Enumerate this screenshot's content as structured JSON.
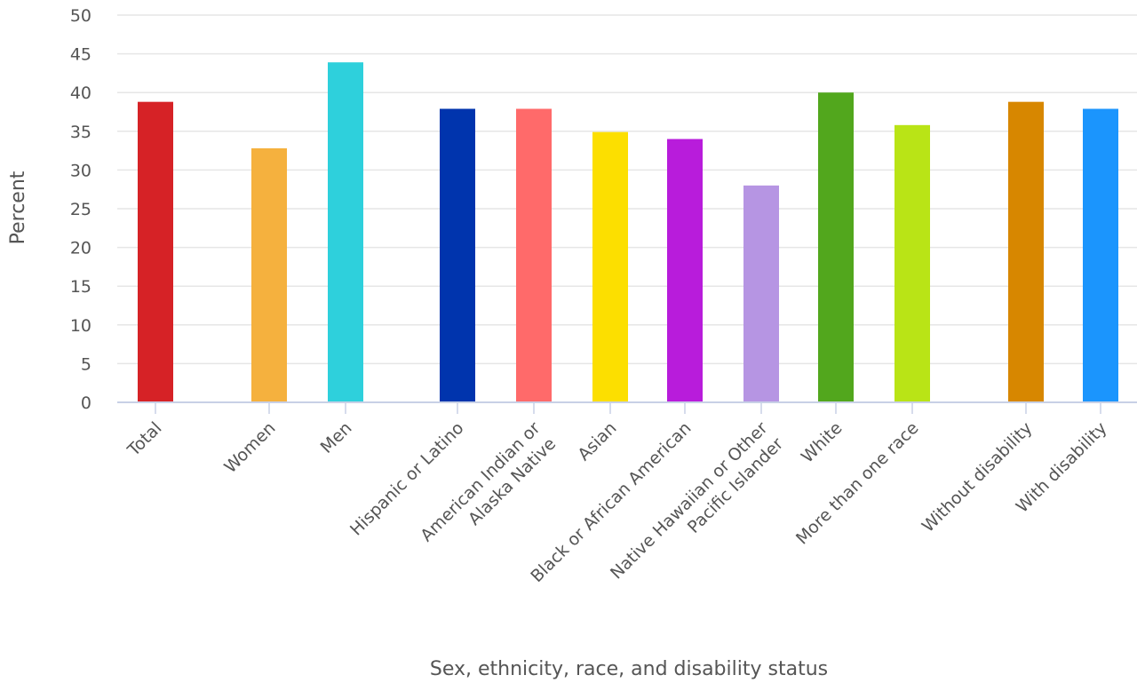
{
  "chart_data": {
    "type": "bar",
    "xlabel": "Sex, ethnicity, race, and disability status",
    "ylabel": "Percent",
    "ylim": [
      0,
      50
    ],
    "yticks": [
      0,
      5,
      10,
      15,
      20,
      25,
      30,
      35,
      40,
      45,
      50
    ],
    "grid": true,
    "categories": [
      [
        "Total"
      ],
      [
        "Women"
      ],
      [
        "Men"
      ],
      [
        "Hispanic or Latino"
      ],
      [
        "American Indian or",
        "Alaska Native"
      ],
      [
        "Asian"
      ],
      [
        "Black or African American"
      ],
      [
        "Native Hawaiian or Other",
        "Pacific Islander"
      ],
      [
        "White"
      ],
      [
        "More than one race"
      ],
      [
        "Without disability"
      ],
      [
        "With disability"
      ]
    ],
    "values": [
      38.8,
      32.8,
      43.9,
      37.9,
      37.9,
      34.9,
      34.0,
      28.0,
      40.0,
      35.8,
      38.8,
      37.9
    ],
    "colors": [
      "#d62226",
      "#f5b13e",
      "#2ed0dc",
      "#0034ad",
      "#ff6a6a",
      "#fcdf00",
      "#b81cdb",
      "#b695e3",
      "#52a71d",
      "#b9e416",
      "#d78700",
      "#1b95fd"
    ]
  }
}
